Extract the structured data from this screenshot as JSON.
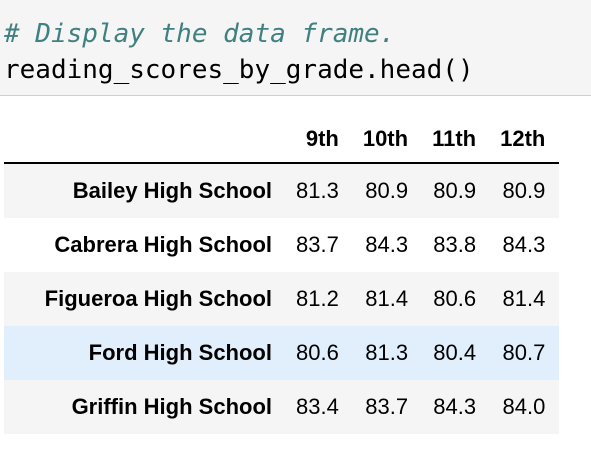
{
  "code_cell": {
    "comment": "# Display the data frame.",
    "code": "reading_scores_by_grade.head()"
  },
  "table": {
    "columns": [
      "9th",
      "10th",
      "11th",
      "12th"
    ],
    "rows": [
      {
        "index": "Bailey High School",
        "values": [
          "81.3",
          "80.9",
          "80.9",
          "80.9"
        ]
      },
      {
        "index": "Cabrera High School",
        "values": [
          "83.7",
          "84.3",
          "83.8",
          "84.3"
        ]
      },
      {
        "index": "Figueroa High School",
        "values": [
          "81.2",
          "81.4",
          "80.6",
          "81.4"
        ]
      },
      {
        "index": "Ford High School",
        "values": [
          "80.6",
          "81.3",
          "80.4",
          "80.7"
        ]
      },
      {
        "index": "Griffin High School",
        "values": [
          "83.4",
          "83.7",
          "84.3",
          "84.0"
        ]
      }
    ]
  }
}
